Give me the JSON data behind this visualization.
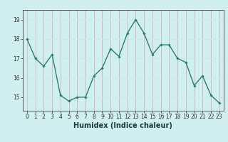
{
  "x": [
    0,
    1,
    2,
    3,
    4,
    5,
    6,
    7,
    8,
    9,
    10,
    11,
    12,
    13,
    14,
    15,
    16,
    17,
    18,
    19,
    20,
    21,
    22,
    23
  ],
  "y": [
    18.0,
    17.0,
    16.6,
    17.2,
    15.1,
    14.8,
    15.0,
    15.0,
    16.1,
    16.5,
    17.5,
    17.1,
    18.3,
    19.0,
    18.3,
    17.2,
    17.7,
    17.7,
    17.0,
    16.8,
    15.6,
    16.1,
    15.1,
    14.7
  ],
  "line_color": "#2e7d6e",
  "marker": "D",
  "marker_size": 1.8,
  "bg_color": "#cff0ee",
  "grid_h_color": "#c8e8e4",
  "grid_v_color": "#d4b8b8",
  "xlabel": "Humidex (Indice chaleur)",
  "xlabel_fontsize": 7,
  "ylim": [
    14.3,
    19.5
  ],
  "yticks": [
    15,
    16,
    17,
    18,
    19
  ],
  "xticks": [
    0,
    1,
    2,
    3,
    4,
    5,
    6,
    7,
    8,
    9,
    10,
    11,
    12,
    13,
    14,
    15,
    16,
    17,
    18,
    19,
    20,
    21,
    22,
    23
  ],
  "tick_fontsize": 5.5,
  "line_width": 1.0,
  "spine_color": "#555555"
}
